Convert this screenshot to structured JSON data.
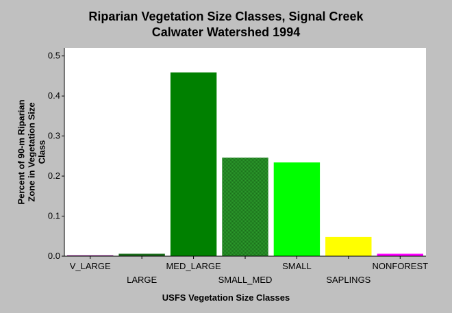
{
  "chart_data": {
    "type": "bar",
    "title_lines": [
      "Riparian Vegetation Size Classes, Signal Creek",
      "Calwater Watershed 1994"
    ],
    "xlabel": "USFS Vegetation Size Classes",
    "ylabel_lines": [
      "Percent of 90-m Riparian",
      "Zone in Vegetation Size",
      "Class"
    ],
    "categories": [
      "V_LARGE",
      "LARGE",
      "MED_LARGE",
      "SMALL_MED",
      "SMALL",
      "SAPLINGS",
      "NONFOREST"
    ],
    "values": [
      0.002,
      0.006,
      0.459,
      0.246,
      0.234,
      0.048,
      0.006
    ],
    "colors": [
      "#800080",
      "#1a6b1a",
      "#008000",
      "#238c23",
      "#00ff00",
      "#ffff00",
      "#ff00ff"
    ],
    "ylim": [
      0,
      0.52
    ],
    "yticks": [
      0.0,
      0.1,
      0.2,
      0.3,
      0.4,
      0.5
    ],
    "ytick_labels": [
      "0.0",
      "0.1",
      "0.2",
      "0.3",
      "0.4",
      "0.5"
    ],
    "grid": false,
    "legend": "none"
  }
}
